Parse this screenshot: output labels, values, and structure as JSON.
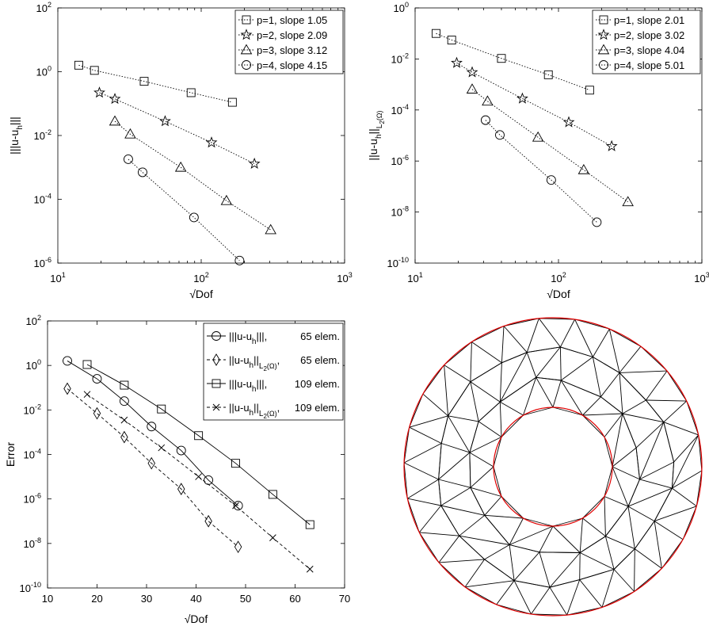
{
  "chart_data": [
    {
      "id": "top-left",
      "type": "line",
      "xscale": "log",
      "yscale": "log",
      "xlim": [
        10,
        1000
      ],
      "ylim": [
        1e-06,
        100
      ],
      "xlabel": "√Dof",
      "ylabel": "|||u-u_h|||",
      "xticks": [
        {
          "base": "10",
          "exp": "1",
          "v": 10
        },
        {
          "base": "10",
          "exp": "2",
          "v": 100
        },
        {
          "base": "10",
          "exp": "3",
          "v": 1000
        }
      ],
      "yticks": [
        {
          "base": "10",
          "exp": "-6",
          "v": 1e-06
        },
        {
          "base": "10",
          "exp": "-4",
          "v": 0.0001
        },
        {
          "base": "10",
          "exp": "-2",
          "v": 0.01
        },
        {
          "base": "10",
          "exp": "0",
          "v": 1
        },
        {
          "base": "10",
          "exp": "2",
          "v": 100
        }
      ],
      "legend_position": "top-right",
      "series": [
        {
          "name": "p=1, slope 1.05",
          "marker": "square",
          "line": "dotted",
          "x": [
            14,
            18,
            40,
            85,
            165
          ],
          "y": [
            1.6,
            1.1,
            0.5,
            0.22,
            0.11
          ]
        },
        {
          "name": "p=2, slope 2.09",
          "marker": "star",
          "line": "dotted",
          "x": [
            19.5,
            25,
            56,
            118,
            235
          ],
          "y": [
            0.22,
            0.14,
            0.028,
            0.006,
            0.0013
          ]
        },
        {
          "name": "p=3, slope 3.12",
          "marker": "triangle",
          "line": "dotted",
          "x": [
            25,
            32,
            72,
            150,
            305
          ],
          "y": [
            0.028,
            0.011,
            0.001,
            9e-05,
            1.1e-05
          ]
        },
        {
          "name": "p=4, slope 4.15",
          "marker": "circle",
          "line": "dotted",
          "x": [
            31,
            39,
            89,
            185
          ],
          "y": [
            0.0018,
            0.0007,
            2.7e-05,
            1.2e-06
          ]
        }
      ]
    },
    {
      "id": "top-right",
      "type": "line",
      "xscale": "log",
      "yscale": "log",
      "xlim": [
        10,
        1000
      ],
      "ylim": [
        1e-10,
        1
      ],
      "xlabel": "√Dof",
      "ylabel": "||u-u_h||_L2(Ω)",
      "xticks": [
        {
          "base": "10",
          "exp": "1",
          "v": 10
        },
        {
          "base": "10",
          "exp": "2",
          "v": 100
        },
        {
          "base": "10",
          "exp": "3",
          "v": 1000
        }
      ],
      "yticks": [
        {
          "base": "10",
          "exp": "-10",
          "v": 1e-10
        },
        {
          "base": "10",
          "exp": "-8",
          "v": 1e-08
        },
        {
          "base": "10",
          "exp": "-6",
          "v": 1e-06
        },
        {
          "base": "10",
          "exp": "-4",
          "v": 0.0001
        },
        {
          "base": "10",
          "exp": "-2",
          "v": 0.01
        },
        {
          "base": "10",
          "exp": "0",
          "v": 1
        }
      ],
      "legend_position": "top-right",
      "series": [
        {
          "name": "p=1, slope 2.01",
          "marker": "square",
          "line": "dotted",
          "x": [
            14,
            18,
            40,
            85,
            165
          ],
          "y": [
            0.1,
            0.055,
            0.0105,
            0.0024,
            0.0006
          ]
        },
        {
          "name": "p=2, slope 3.02",
          "marker": "star",
          "line": "dotted",
          "x": [
            19.5,
            25,
            56,
            118,
            235
          ],
          "y": [
            0.007,
            0.003,
            0.00028,
            3.3e-05,
            3.8e-06
          ]
        },
        {
          "name": "p=3, slope 4.04",
          "marker": "triangle",
          "line": "dotted",
          "x": [
            25,
            32,
            72,
            150,
            305
          ],
          "y": [
            0.00065,
            0.00022,
            8.5e-06,
            4.5e-07,
            2.5e-08
          ]
        },
        {
          "name": "p=4, slope 5.01",
          "marker": "circle",
          "line": "dotted",
          "x": [
            31,
            39,
            89,
            185
          ],
          "y": [
            4e-05,
            1.05e-05,
            1.8e-07,
            4e-09
          ]
        }
      ]
    },
    {
      "id": "bottom-left",
      "type": "line",
      "xscale": "linear",
      "yscale": "log",
      "xlim": [
        10,
        70
      ],
      "ylim": [
        1e-10,
        100
      ],
      "xlabel": "√Dof",
      "ylabel": "Error",
      "xticks": [
        {
          "label": "10",
          "v": 10
        },
        {
          "label": "20",
          "v": 20
        },
        {
          "label": "30",
          "v": 30
        },
        {
          "label": "40",
          "v": 40
        },
        {
          "label": "50",
          "v": 50
        },
        {
          "label": "60",
          "v": 60
        },
        {
          "label": "70",
          "v": 70
        }
      ],
      "yticks": [
        {
          "base": "10",
          "exp": "-10",
          "v": 1e-10
        },
        {
          "base": "10",
          "exp": "-8",
          "v": 1e-08
        },
        {
          "base": "10",
          "exp": "-6",
          "v": 1e-06
        },
        {
          "base": "10",
          "exp": "-4",
          "v": 0.0001
        },
        {
          "base": "10",
          "exp": "-2",
          "v": 0.01
        },
        {
          "base": "10",
          "exp": "0",
          "v": 1
        },
        {
          "base": "10",
          "exp": "2",
          "v": 100
        }
      ],
      "legend_position": "top-right",
      "series": [
        {
          "name": "|||u-u_h|||, 65 elem.",
          "marker": "circle",
          "line": "solid",
          "x": [
            14,
            20,
            25.5,
            31,
            37,
            42.5,
            48.5
          ],
          "y": [
            1.6,
            0.25,
            0.025,
            0.0018,
            0.00015,
            7e-06,
            5e-07
          ]
        },
        {
          "name": "||u-u_h||_L2(Ω), 65 elem.",
          "marker": "diamond",
          "line": "dashed",
          "x": [
            14,
            20,
            25.5,
            31,
            37,
            42.5,
            48.5
          ],
          "y": [
            0.09,
            0.007,
            0.0006,
            4e-05,
            2.8e-06,
            1e-07,
            7e-09
          ]
        },
        {
          "name": "|||u-u_h|||, 109 elem.",
          "marker": "square",
          "line": "solid",
          "x": [
            18,
            25.5,
            33,
            40.5,
            48,
            55.5,
            63
          ],
          "y": [
            1.1,
            0.13,
            0.011,
            0.0007,
            4e-05,
            1.6e-06,
            7e-08
          ]
        },
        {
          "name": "||u-u_h||_L2(Ω), 109 elem.",
          "marker": "x",
          "line": "dashed",
          "x": [
            18,
            25.5,
            33,
            40.5,
            48,
            55.5,
            63
          ],
          "y": [
            0.05,
            0.0035,
            0.0002,
            1e-05,
            5e-07,
            1.8e-08,
            7e-10
          ]
        }
      ]
    }
  ],
  "legend_labels": {
    "l1": "|||u-u",
    "l1_sub": "h",
    "l1_tail": "|||,",
    "l1_elem": "65 elem.",
    "l2": "||u-u",
    "l2_sub": "h",
    "l2_mid": "||",
    "l2_sub2": "L",
    "l2_sub3": "2",
    "l2_sub4": "(Ω)",
    "l2_tail": ",",
    "l2_elem": "65 elem.",
    "l3": "|||u-u",
    "l3_sub": "h",
    "l3_tail": "|||,",
    "l3_elem": "109 elem.",
    "l4": "||u-u",
    "l4_sub": "h",
    "l4_mid": "||",
    "l4_sub2": "L",
    "l4_sub3": "2",
    "l4_sub4": "(Ω)",
    "l4_tail": ",",
    "l4_elem": "109 elem."
  },
  "ylabels": {
    "tl_main": "|||u-u",
    "tl_sub": "h",
    "tl_tail": "|||",
    "tr_main": "||u-u",
    "tr_sub": "h",
    "tr_mid": "||",
    "tr_sub2": "L",
    "tr_sub3": "2",
    "tr_sub4": "(Ω)"
  },
  "mesh": {
    "description_colors": {
      "boundary": "#e00000",
      "edges": "#000000"
    }
  }
}
